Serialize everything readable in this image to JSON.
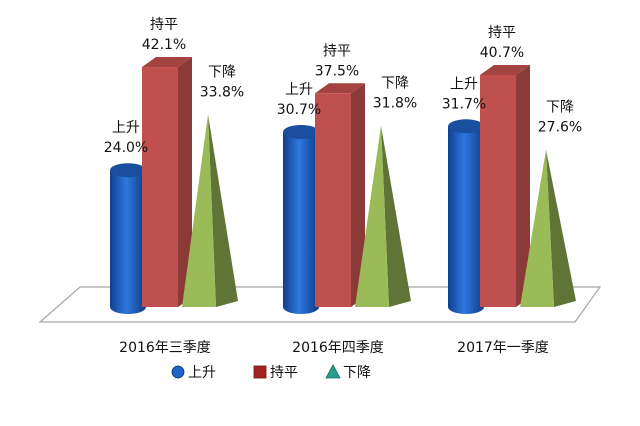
{
  "chart_data": {
    "type": "bar",
    "categories": [
      "2016年三季度",
      "2016年四季度",
      "2017年一季度"
    ],
    "series": [
      {
        "name": "上升",
        "values": [
          24.0,
          30.7,
          31.7
        ],
        "color": "#1f63c6",
        "shape": "cylinder"
      },
      {
        "name": "持平",
        "values": [
          42.1,
          37.5,
          40.7
        ],
        "color": "#c0504d",
        "shape": "box"
      },
      {
        "name": "下降",
        "values": [
          33.8,
          31.8,
          27.6
        ],
        "color": "#9bbb59",
        "shape": "pyramid"
      }
    ],
    "data_labels": {
      "show": true,
      "format": "{name}\n{value}%"
    },
    "grid": false,
    "legend": {
      "position": "bottom",
      "items": [
        "上升",
        "持平",
        "下降"
      ]
    },
    "ylim": [
      0,
      50
    ]
  }
}
